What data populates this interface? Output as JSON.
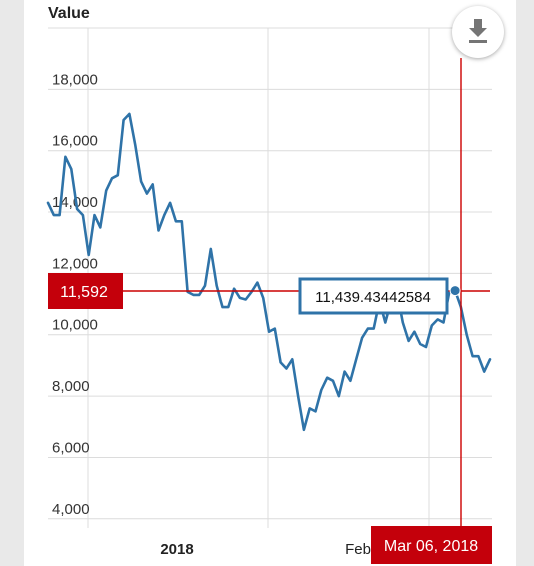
{
  "chart_data": {
    "type": "line",
    "ylabel": "Value",
    "yticks": [
      4000,
      6000,
      8000,
      10000,
      12000,
      14000,
      16000,
      18000
    ],
    "ytick_labels": [
      "4,000",
      "6,000",
      "8,000",
      "10,000",
      "12,000",
      "14,000",
      "16,000",
      "18,000"
    ],
    "ylim": [
      3700,
      20000
    ],
    "xtick_labels": [
      "2018",
      "Feb"
    ],
    "grid": true,
    "series": [
      {
        "values": [
          14300,
          13900,
          13900,
          15800,
          15400,
          14100,
          13900,
          12600,
          13900,
          13500,
          14700,
          15100,
          15200,
          17000,
          17200,
          16200,
          15000,
          14600,
          14900,
          13400,
          13900,
          14300,
          13700,
          13700,
          11400,
          11300,
          11300,
          11600,
          12800,
          11600,
          10900,
          10900,
          11500,
          11200,
          11150,
          11400,
          11700,
          11200,
          10100,
          10200,
          9100,
          8900,
          9200,
          8000,
          6900,
          7600,
          7500,
          8200,
          8600,
          8500,
          8000,
          8800,
          8500,
          9200,
          9900,
          10200,
          10200,
          11100,
          10400,
          11100,
          11400,
          10400,
          9800,
          10100,
          9700,
          9600,
          10300,
          10500,
          10400,
          11400,
          11439.43442584,
          10900,
          10000,
          9300,
          9300,
          8800,
          9200
        ]
      }
    ],
    "crosshair": {
      "value_label": "11,592",
      "date_label": "Mar 06, 2018",
      "tooltip": "11,439.43442584"
    }
  },
  "toolbar": {
    "download_icon": "download-icon"
  }
}
